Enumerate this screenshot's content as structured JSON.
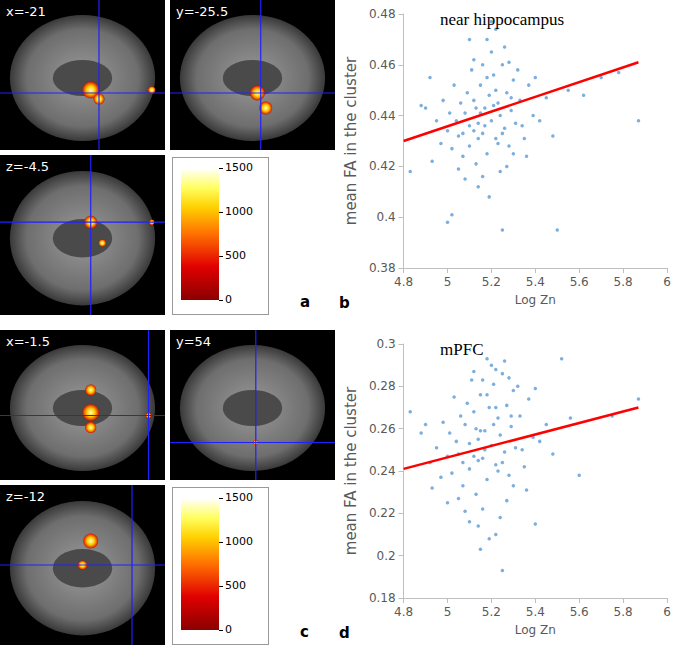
{
  "chart_data": [
    {
      "type": "scatter",
      "title": "near hippocampus",
      "panel_label": "b",
      "x_label": "Log Zn",
      "y_label": "mean FA in the cluster",
      "xlim": [
        4.8,
        6
      ],
      "xticks": [
        4.8,
        5,
        5.2,
        5.4,
        5.6,
        5.8,
        6
      ],
      "ylim": [
        0.38,
        0.48
      ],
      "yticks": [
        0.38,
        0.4,
        0.42,
        0.44,
        0.46,
        0.48
      ],
      "grid": false,
      "series": [
        {
          "type": "scatter",
          "color": "#5b9bd5",
          "marker": "circle",
          "x": [
            5.05,
            5.08,
            5.1,
            5.12,
            5.14,
            5.15,
            5.16,
            5.17,
            5.18,
            5.19,
            5.2,
            5.21,
            5.22,
            5.23,
            5.24,
            5.25,
            5.26,
            5.27,
            5.28,
            5.29,
            5.3,
            5.31,
            5.13,
            5.11,
            5.09,
            5.07,
            5.06,
            5.04,
            5.03,
            5.02,
            5.01,
            5.0,
            4.98,
            4.97,
            4.95,
            5.33,
            5.35,
            5.37,
            5.39,
            5.2,
            5.18,
            5.22,
            5.16,
            5.24,
            5.14,
            5.27,
            5.19,
            5.08,
            5.12,
            5.26,
            5.28,
            5.15,
            5.17,
            5.21,
            5.23,
            5.1,
            5.05,
            5.3,
            5.32,
            5.36,
            4.93,
            4.9,
            4.88,
            4.83,
            4.92,
            5.42,
            5.45,
            5.48,
            5.5,
            5.55,
            5.62,
            5.7,
            5.78,
            5.87,
            5.0,
            5.02,
            5.25,
            5.1,
            5.2,
            5.14,
            5.18,
            5.22,
            5.25,
            5.16,
            5.12,
            5.29,
            5.07,
            5.34,
            5.4,
            5.13
          ],
          "values": [
            0.432,
            0.441,
            0.428,
            0.446,
            0.437,
            0.452,
            0.433,
            0.443,
            0.425,
            0.448,
            0.438,
            0.456,
            0.431,
            0.445,
            0.44,
            0.46,
            0.435,
            0.449,
            0.428,
            0.442,
            0.454,
            0.437,
            0.421,
            0.458,
            0.449,
            0.424,
            0.445,
            0.438,
            0.452,
            0.427,
            0.441,
            0.434,
            0.446,
            0.429,
            0.438,
            0.446,
            0.431,
            0.452,
            0.44,
            0.465,
            0.47,
            0.474,
            0.416,
            0.418,
            0.412,
            0.42,
            0.408,
            0.415,
            0.462,
            0.467,
            0.461,
            0.441,
            0.436,
            0.444,
            0.429,
            0.436,
            0.419,
            0.425,
            0.458,
            0.424,
            0.422,
            0.443,
            0.444,
            0.418,
            0.455,
            0.438,
            0.447,
            0.432,
            0.395,
            0.45,
            0.448,
            0.455,
            0.457,
            0.438,
            0.398,
            0.401,
            0.395,
            0.47,
            0.477,
            0.431,
            0.455,
            0.45,
            0.433,
            0.46,
            0.434,
            0.447,
            0.433,
            0.436,
            0.455,
            0.443
          ]
        },
        {
          "type": "line",
          "color": "#ff0000",
          "line_style": "solid",
          "x": [
            4.8,
            5.87
          ],
          "values": [
            0.43,
            0.461
          ]
        }
      ]
    },
    {
      "type": "scatter",
      "title": "mPFC",
      "panel_label": "d",
      "x_label": "Log Zn",
      "y_label": "mean FA in the cluster",
      "xlim": [
        4.8,
        6
      ],
      "xticks": [
        4.8,
        5,
        5.2,
        5.4,
        5.6,
        5.8,
        6
      ],
      "ylim": [
        0.18,
        0.3
      ],
      "yticks": [
        0.18,
        0.2,
        0.22,
        0.24,
        0.26,
        0.28,
        0.3
      ],
      "grid": false,
      "series": [
        {
          "type": "scatter",
          "color": "#5b9bd5",
          "marker": "circle",
          "x": [
            5.05,
            5.08,
            5.1,
            5.12,
            5.14,
            5.15,
            5.16,
            5.17,
            5.18,
            5.19,
            5.2,
            5.21,
            5.22,
            5.23,
            5.24,
            5.25,
            5.26,
            5.27,
            5.28,
            5.29,
            5.3,
            5.31,
            5.13,
            5.11,
            5.09,
            5.07,
            5.06,
            5.04,
            5.03,
            5.02,
            5.01,
            5.0,
            4.98,
            4.97,
            4.95,
            5.33,
            5.35,
            5.37,
            5.39,
            5.2,
            5.18,
            5.22,
            5.16,
            5.24,
            5.14,
            5.27,
            5.19,
            5.08,
            5.12,
            5.26,
            5.28,
            5.15,
            5.17,
            5.21,
            5.23,
            5.1,
            5.05,
            5.3,
            5.32,
            5.36,
            4.93,
            4.9,
            4.88,
            4.83,
            4.92,
            5.42,
            5.45,
            5.48,
            5.52,
            5.56,
            5.4,
            5.6,
            5.75,
            5.87,
            5.0,
            5.25,
            5.15,
            5.1,
            5.22,
            5.14,
            5.18,
            5.22,
            5.25,
            5.16,
            5.12,
            5.29,
            5.07,
            5.34,
            5.4,
            5.13
          ],
          "values": [
            0.248,
            0.262,
            0.241,
            0.268,
            0.255,
            0.276,
            0.246,
            0.259,
            0.236,
            0.27,
            0.252,
            0.281,
            0.243,
            0.265,
            0.257,
            0.286,
            0.249,
            0.271,
            0.238,
            0.261,
            0.278,
            0.251,
            0.229,
            0.283,
            0.272,
            0.233,
            0.266,
            0.254,
            0.275,
            0.239,
            0.258,
            0.247,
            0.263,
            0.237,
            0.251,
            0.266,
            0.242,
            0.274,
            0.256,
            0.29,
            0.293,
            0.288,
            0.222,
            0.218,
            0.214,
            0.226,
            0.208,
            0.221,
            0.287,
            0.292,
            0.284,
            0.259,
            0.25,
            0.262,
            0.24,
            0.253,
            0.227,
            0.233,
            0.28,
            0.231,
            0.232,
            0.262,
            0.258,
            0.268,
            0.244,
            0.254,
            0.262,
            0.248,
            0.293,
            0.265,
            0.215,
            0.238,
            0.266,
            0.274,
            0.225,
            0.193,
            0.203,
            0.216,
            0.21,
            0.245,
            0.276,
            0.27,
            0.244,
            0.283,
            0.247,
            0.266,
            0.244,
            0.25,
            0.279,
            0.26
          ]
        },
        {
          "type": "line",
          "color": "#ff0000",
          "line_style": "solid",
          "x": [
            4.8,
            5.87
          ],
          "values": [
            0.241,
            0.27
          ]
        }
      ]
    }
  ],
  "brain_panels": [
    {
      "panel_label": "a",
      "slice_labels": [
        "x=-21",
        "y=-25.5",
        "z=-4.5"
      ],
      "colorbar": {
        "range": [
          0,
          1500
        ],
        "ticks": [
          0,
          500,
          1000,
          1500
        ]
      }
    },
    {
      "panel_label": "c",
      "slice_labels": [
        "x=-1.5",
        "y=54",
        "z=-12"
      ],
      "colorbar": {
        "range": [
          0,
          1500
        ],
        "ticks": [
          0,
          500,
          1000,
          1500
        ]
      }
    }
  ]
}
